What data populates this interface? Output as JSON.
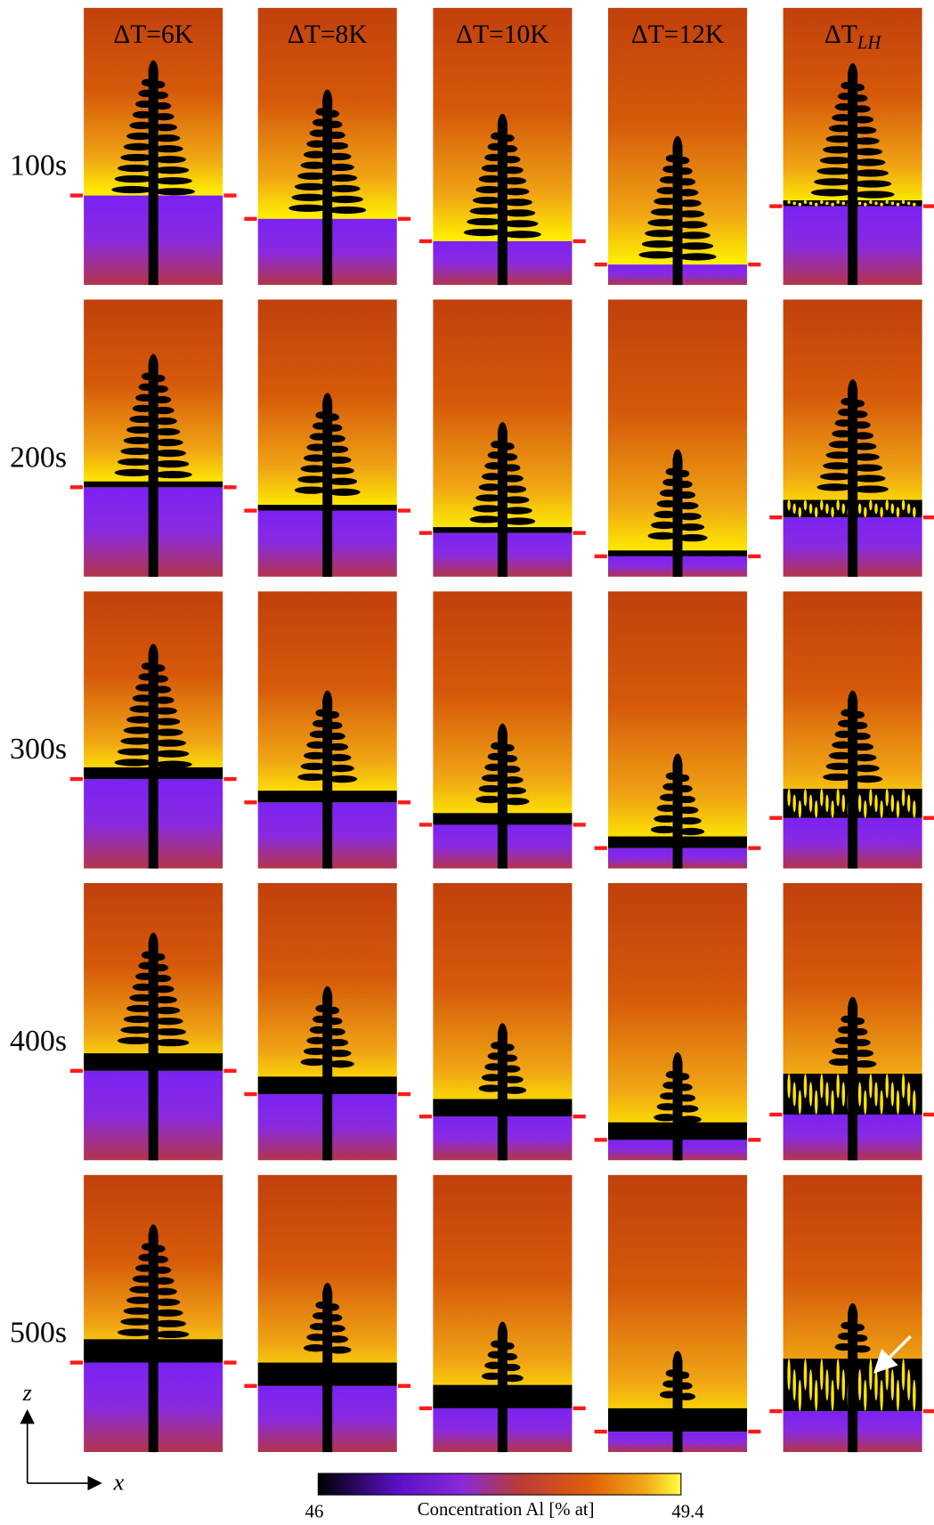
{
  "column_headers": [
    "ΔT=6K",
    "ΔT=8K",
    "ΔT=10K",
    "ΔT=12K",
    {
      "text": "ΔT",
      "subscript": "LH"
    }
  ],
  "row_labels": [
    "100s",
    "200s",
    "300s",
    "400s",
    "500s"
  ],
  "colorbar": {
    "min": 46,
    "max": 49.4,
    "label": "Concentration Al [% at]"
  },
  "axes": {
    "vertical": "z",
    "horizontal": "x"
  }
}
